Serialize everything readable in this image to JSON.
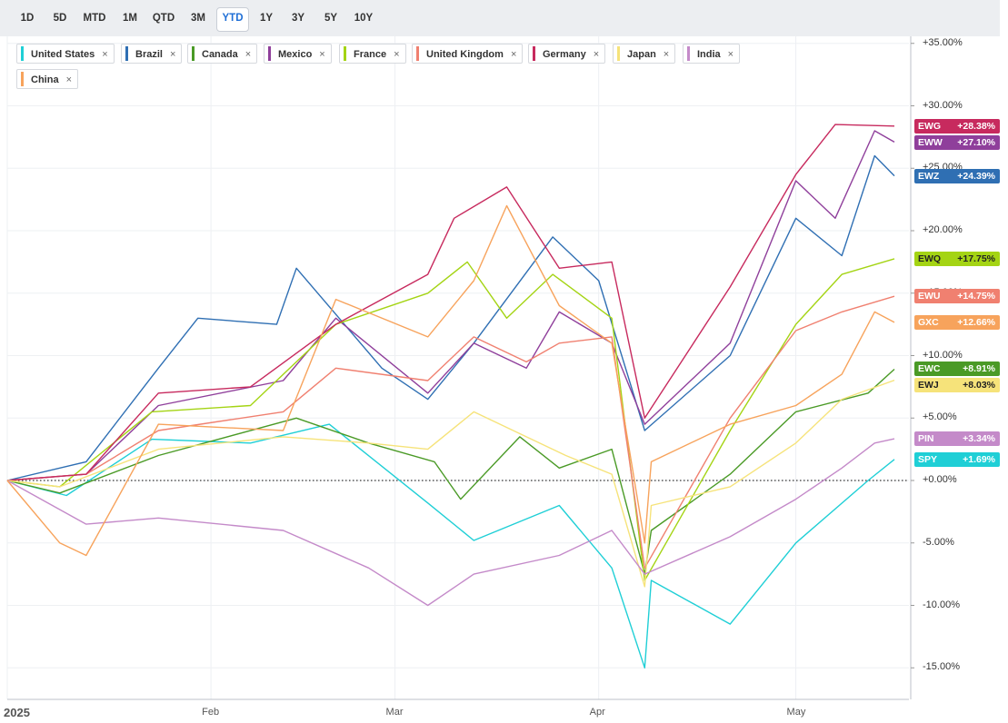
{
  "ranges": [
    {
      "label": "1D",
      "active": false
    },
    {
      "label": "5D",
      "active": false
    },
    {
      "label": "MTD",
      "active": false
    },
    {
      "label": "1M",
      "active": false
    },
    {
      "label": "QTD",
      "active": false
    },
    {
      "label": "3M",
      "active": false
    },
    {
      "label": "YTD",
      "active": true
    },
    {
      "label": "1Y",
      "active": false
    },
    {
      "label": "3Y",
      "active": false
    },
    {
      "label": "5Y",
      "active": false
    },
    {
      "label": "10Y",
      "active": false
    }
  ],
  "legend_close_glyph": "×",
  "chart_data": {
    "type": "line",
    "ylabel_format": "percent",
    "ylim": [
      -16.0,
      35.5
    ],
    "yticks": [
      "+35.00%",
      "+30.00%",
      "+25.00%",
      "+20.00%",
      "+15.00%",
      "+10.00%",
      "+5.00%",
      "+0.00%",
      "-5.00%",
      "-10.00%",
      "-15.00%"
    ],
    "ytick_values": [
      35,
      30,
      25,
      20,
      15,
      10,
      5,
      0,
      -5,
      -10,
      -15
    ],
    "xticks": [
      "2025",
      "Feb",
      "Mar",
      "Apr",
      "May"
    ],
    "xtick_dates": [
      "2025-01-01",
      "2025-02-01",
      "2025-03-01",
      "2025-04-01",
      "2025-05-01"
    ],
    "x_range": [
      "2025-01-01",
      "2025-05-16"
    ],
    "zero_line": "dotted",
    "grid": true,
    "legend": "top-left",
    "series": [
      {
        "name": "United States",
        "ticker": "SPY",
        "end_label": "+1.69%",
        "color": "#1fcfd6",
        "end": 1.69,
        "points": [
          [
            "2025-01-01",
            0
          ],
          [
            "2025-01-10",
            -1.2
          ],
          [
            "2025-01-23",
            3.3
          ],
          [
            "2025-02-07",
            3.0
          ],
          [
            "2025-02-19",
            4.5
          ],
          [
            "2025-03-06",
            -1.8
          ],
          [
            "2025-03-13",
            -4.8
          ],
          [
            "2025-03-26",
            -2.0
          ],
          [
            "2025-04-03",
            -7.0
          ],
          [
            "2025-04-08",
            -15.0
          ],
          [
            "2025-04-09",
            -8.0
          ],
          [
            "2025-04-21",
            -11.5
          ],
          [
            "2025-05-01",
            -5.0
          ],
          [
            "2025-05-12",
            0.0
          ],
          [
            "2025-05-16",
            1.69
          ]
        ]
      },
      {
        "name": "Brazil",
        "ticker": "EWZ",
        "end_label": "+24.39%",
        "color": "#2f6fb3",
        "end": 24.39,
        "points": [
          [
            "2025-01-01",
            0
          ],
          [
            "2025-01-13",
            1.5
          ],
          [
            "2025-01-24",
            9.0
          ],
          [
            "2025-01-30",
            13.0
          ],
          [
            "2025-02-11",
            12.5
          ],
          [
            "2025-02-14",
            17.0
          ],
          [
            "2025-02-27",
            9.0
          ],
          [
            "2025-03-06",
            6.5
          ],
          [
            "2025-03-13",
            11.0
          ],
          [
            "2025-03-25",
            19.5
          ],
          [
            "2025-04-01",
            16.0
          ],
          [
            "2025-04-08",
            4.0
          ],
          [
            "2025-04-21",
            10.0
          ],
          [
            "2025-05-01",
            21.0
          ],
          [
            "2025-05-08",
            18.0
          ],
          [
            "2025-05-13",
            26.0
          ],
          [
            "2025-05-16",
            24.39
          ]
        ]
      },
      {
        "name": "Canada",
        "ticker": "EWC",
        "end_label": "+8.91%",
        "color": "#4a9a26",
        "end": 8.91,
        "points": [
          [
            "2025-01-01",
            0
          ],
          [
            "2025-01-09",
            -1.0
          ],
          [
            "2025-01-24",
            2.0
          ],
          [
            "2025-02-14",
            5.0
          ],
          [
            "2025-02-25",
            3.0
          ],
          [
            "2025-03-07",
            1.5
          ],
          [
            "2025-03-11",
            -1.5
          ],
          [
            "2025-03-20",
            3.5
          ],
          [
            "2025-03-26",
            1.0
          ],
          [
            "2025-04-03",
            2.5
          ],
          [
            "2025-04-08",
            -7.5
          ],
          [
            "2025-04-09",
            -4.0
          ],
          [
            "2025-04-21",
            0.5
          ],
          [
            "2025-05-01",
            5.5
          ],
          [
            "2025-05-12",
            7.0
          ],
          [
            "2025-05-16",
            8.91
          ]
        ]
      },
      {
        "name": "Mexico",
        "ticker": "EWW",
        "end_label": "+27.10%",
        "color": "#8f3f9b",
        "end": 27.1,
        "points": [
          [
            "2025-01-01",
            0
          ],
          [
            "2025-01-13",
            0.5
          ],
          [
            "2025-01-24",
            6.0
          ],
          [
            "2025-02-12",
            8.0
          ],
          [
            "2025-02-20",
            13.0
          ],
          [
            "2025-03-06",
            7.0
          ],
          [
            "2025-03-13",
            11.0
          ],
          [
            "2025-03-21",
            9.0
          ],
          [
            "2025-03-26",
            13.5
          ],
          [
            "2025-04-03",
            11.0
          ],
          [
            "2025-04-08",
            4.5
          ],
          [
            "2025-04-21",
            11.0
          ],
          [
            "2025-05-01",
            24.0
          ],
          [
            "2025-05-07",
            21.0
          ],
          [
            "2025-05-13",
            28.0
          ],
          [
            "2025-05-16",
            27.1
          ]
        ]
      },
      {
        "name": "France",
        "ticker": "EWQ",
        "end_label": "+17.75%",
        "color": "#a4d414",
        "end": 17.75,
        "points": [
          [
            "2025-01-01",
            0
          ],
          [
            "2025-01-09",
            -0.5
          ],
          [
            "2025-01-23",
            5.5
          ],
          [
            "2025-02-07",
            6.0
          ],
          [
            "2025-02-20",
            12.5
          ],
          [
            "2025-03-06",
            15.0
          ],
          [
            "2025-03-12",
            17.5
          ],
          [
            "2025-03-18",
            13.0
          ],
          [
            "2025-03-25",
            16.5
          ],
          [
            "2025-04-03",
            13.0
          ],
          [
            "2025-04-08",
            -8.0
          ],
          [
            "2025-04-21",
            4.0
          ],
          [
            "2025-05-01",
            12.5
          ],
          [
            "2025-05-08",
            16.5
          ],
          [
            "2025-05-16",
            17.75
          ]
        ]
      },
      {
        "name": "United Kingdom",
        "ticker": "EWU",
        "end_label": "+14.75%",
        "color": "#f08070",
        "end": 14.75,
        "points": [
          [
            "2025-01-01",
            0
          ],
          [
            "2025-01-13",
            0.5
          ],
          [
            "2025-01-24",
            4.0
          ],
          [
            "2025-02-12",
            5.5
          ],
          [
            "2025-02-20",
            9.0
          ],
          [
            "2025-03-06",
            8.0
          ],
          [
            "2025-03-13",
            11.5
          ],
          [
            "2025-03-21",
            9.5
          ],
          [
            "2025-03-26",
            11.0
          ],
          [
            "2025-04-03",
            11.5
          ],
          [
            "2025-04-08",
            -7.0
          ],
          [
            "2025-04-21",
            5.0
          ],
          [
            "2025-05-01",
            12.0
          ],
          [
            "2025-05-08",
            13.5
          ],
          [
            "2025-05-16",
            14.75
          ]
        ]
      },
      {
        "name": "Germany",
        "ticker": "EWG",
        "end_label": "+28.38%",
        "color": "#c72a5e",
        "end": 28.38,
        "points": [
          [
            "2025-01-01",
            0
          ],
          [
            "2025-01-13",
            0.5
          ],
          [
            "2025-01-24",
            7.0
          ],
          [
            "2025-02-07",
            7.5
          ],
          [
            "2025-02-20",
            12.5
          ],
          [
            "2025-03-06",
            16.5
          ],
          [
            "2025-03-10",
            21.0
          ],
          [
            "2025-03-18",
            23.5
          ],
          [
            "2025-03-26",
            17.0
          ],
          [
            "2025-04-03",
            17.5
          ],
          [
            "2025-04-08",
            5.0
          ],
          [
            "2025-04-21",
            15.5
          ],
          [
            "2025-05-01",
            24.5
          ],
          [
            "2025-05-07",
            28.5
          ],
          [
            "2025-05-16",
            28.38
          ]
        ]
      },
      {
        "name": "Japan",
        "ticker": "EWJ",
        "end_label": "+8.03%",
        "color": "#f6e37a",
        "end": 8.03,
        "points": [
          [
            "2025-01-01",
            0
          ],
          [
            "2025-01-09",
            -0.5
          ],
          [
            "2025-01-24",
            2.5
          ],
          [
            "2025-02-12",
            3.5
          ],
          [
            "2025-02-25",
            3.0
          ],
          [
            "2025-03-06",
            2.5
          ],
          [
            "2025-03-13",
            5.5
          ],
          [
            "2025-03-21",
            3.5
          ],
          [
            "2025-03-27",
            2.0
          ],
          [
            "2025-04-03",
            0.5
          ],
          [
            "2025-04-08",
            -8.5
          ],
          [
            "2025-04-09",
            -2.0
          ],
          [
            "2025-04-21",
            -0.5
          ],
          [
            "2025-05-01",
            3.0
          ],
          [
            "2025-05-08",
            6.5
          ],
          [
            "2025-05-16",
            8.03
          ]
        ]
      },
      {
        "name": "India",
        "ticker": "PIN",
        "end_label": "+3.34%",
        "color": "#c48ac9",
        "end": 3.34,
        "points": [
          [
            "2025-01-01",
            0
          ],
          [
            "2025-01-13",
            -3.5
          ],
          [
            "2025-01-24",
            -3.0
          ],
          [
            "2025-02-12",
            -4.0
          ],
          [
            "2025-02-25",
            -7.0
          ],
          [
            "2025-03-06",
            -10.0
          ],
          [
            "2025-03-13",
            -7.5
          ],
          [
            "2025-03-26",
            -6.0
          ],
          [
            "2025-04-03",
            -4.0
          ],
          [
            "2025-04-08",
            -7.5
          ],
          [
            "2025-04-21",
            -4.5
          ],
          [
            "2025-05-01",
            -1.5
          ],
          [
            "2025-05-08",
            1.0
          ],
          [
            "2025-05-13",
            3.0
          ],
          [
            "2025-05-16",
            3.34
          ]
        ]
      },
      {
        "name": "China",
        "ticker": "GXC",
        "end_label": "+12.66%",
        "color": "#f7a35c",
        "end": 12.66,
        "points": [
          [
            "2025-01-01",
            0
          ],
          [
            "2025-01-09",
            -5.0
          ],
          [
            "2025-01-13",
            -6.0
          ],
          [
            "2025-01-24",
            4.5
          ],
          [
            "2025-02-12",
            4.0
          ],
          [
            "2025-02-20",
            14.5
          ],
          [
            "2025-03-06",
            11.5
          ],
          [
            "2025-03-13",
            16.0
          ],
          [
            "2025-03-18",
            22.0
          ],
          [
            "2025-03-26",
            14.0
          ],
          [
            "2025-04-03",
            11.0
          ],
          [
            "2025-04-08",
            -5.0
          ],
          [
            "2025-04-09",
            1.5
          ],
          [
            "2025-04-21",
            4.5
          ],
          [
            "2025-05-01",
            6.0
          ],
          [
            "2025-05-08",
            8.5
          ],
          [
            "2025-05-13",
            13.5
          ],
          [
            "2025-05-16",
            12.66
          ]
        ]
      }
    ]
  }
}
